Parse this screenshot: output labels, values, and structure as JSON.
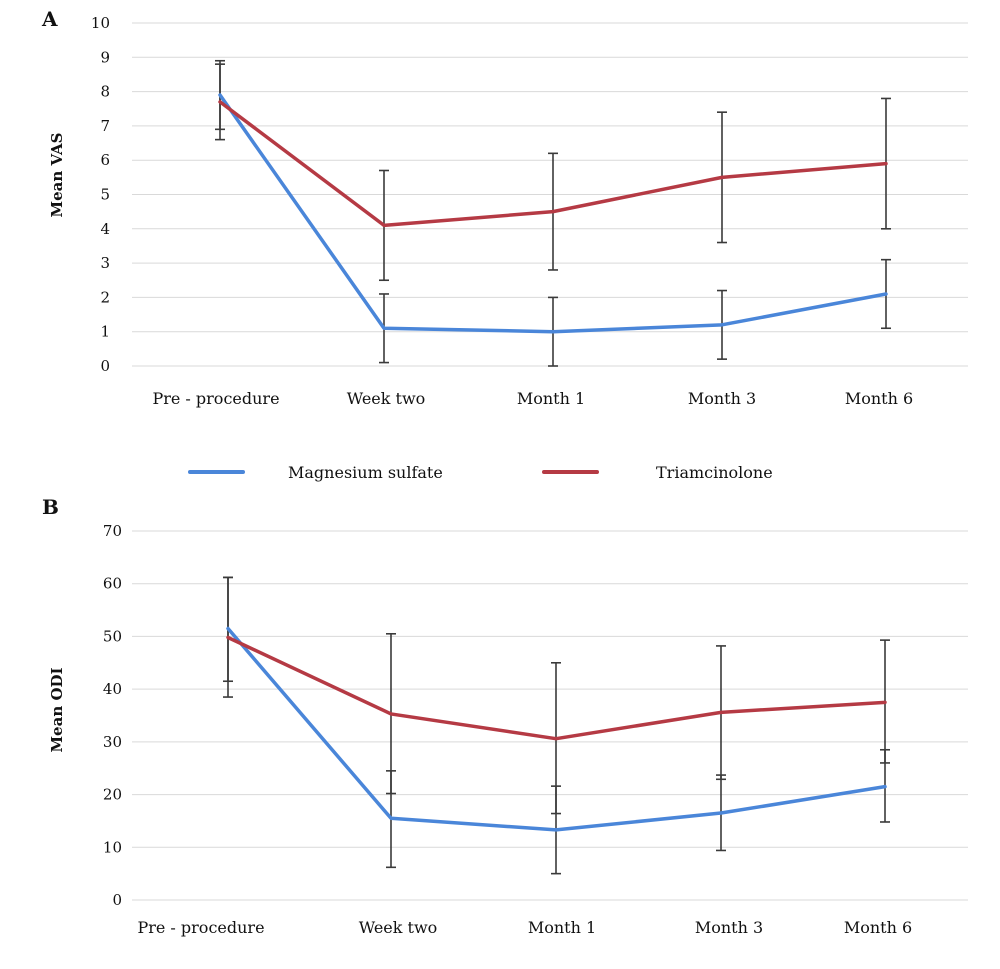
{
  "colors": {
    "magnesium": "#4a86d9",
    "triamcinolone": "#b53a44",
    "grid": "#d9d9d9",
    "error_bar": "#3a3a3a"
  },
  "legend": {
    "items": [
      "Magnesium sulfate",
      "Triamcinolone"
    ],
    "placement": "between panels"
  },
  "chart_data": [
    {
      "panel": "A",
      "type": "line",
      "ylabel": "Mean VAS",
      "xlabel": "",
      "categories": [
        "Pre - procedure",
        "Week two",
        "Month 1",
        "Month 3",
        "Month 6"
      ],
      "ylim": [
        0,
        10
      ],
      "yticks": [
        0,
        1,
        2,
        3,
        4,
        5,
        6,
        7,
        8,
        9,
        10
      ],
      "grid": true,
      "series": [
        {
          "name": "Magnesium sulfate",
          "values": [
            7.9,
            1.1,
            1.0,
            1.2,
            2.1
          ],
          "err_low": [
            6.9,
            0.1,
            0.0,
            0.2,
            1.1
          ],
          "err_high": [
            8.9,
            2.1,
            2.0,
            2.2,
            3.1
          ]
        },
        {
          "name": "Triamcinolone",
          "values": [
            7.7,
            4.1,
            4.5,
            5.5,
            5.9
          ],
          "err_low": [
            6.6,
            2.5,
            2.8,
            3.6,
            4.0
          ],
          "err_high": [
            8.8,
            5.7,
            6.2,
            7.4,
            7.8
          ]
        }
      ]
    },
    {
      "panel": "B",
      "type": "line",
      "ylabel": "Mean ODI",
      "xlabel": "",
      "categories": [
        "Pre - procedure",
        "Week two",
        "Month 1",
        "Month 3",
        "Month 6"
      ],
      "ylim": [
        0,
        70
      ],
      "yticks": [
        0,
        10,
        20,
        30,
        40,
        50,
        60,
        70
      ],
      "grid": true,
      "series": [
        {
          "name": "Magnesium sulfate",
          "values": [
            51.5,
            15.5,
            13.3,
            16.5,
            21.5
          ],
          "err_low": [
            41.5,
            6.2,
            5.0,
            9.4,
            14.8
          ],
          "err_high": [
            61.2,
            24.5,
            21.6,
            23.7,
            28.5
          ]
        },
        {
          "name": "Triamcinolone",
          "values": [
            49.8,
            35.3,
            30.6,
            35.6,
            37.5
          ],
          "err_low": [
            38.5,
            20.2,
            16.4,
            22.9,
            26.0
          ],
          "err_high": [
            61.2,
            50.5,
            45.0,
            48.2,
            49.3
          ]
        }
      ]
    }
  ]
}
